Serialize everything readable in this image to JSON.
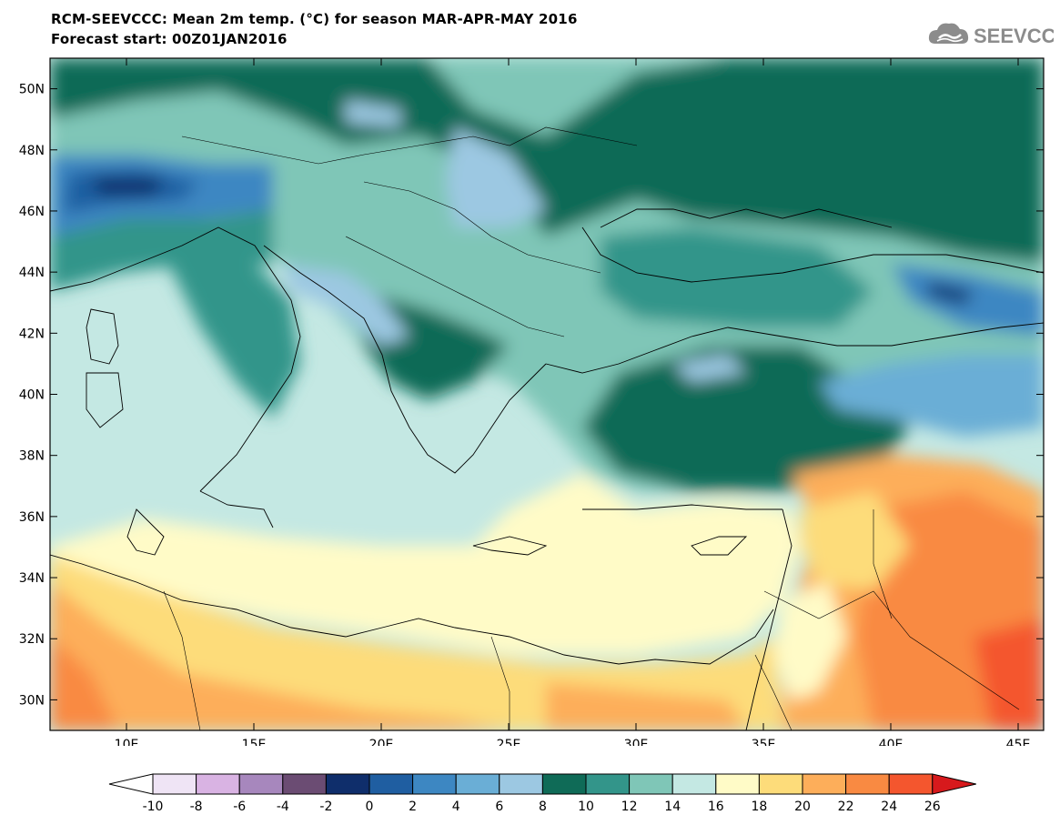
{
  "title": {
    "line1": "RCM-SEEVCCC: Mean 2m temp. (°C) for season MAR-APR-MAY 2016",
    "line2": "Forecast start: 00Z01JAN2016"
  },
  "logo": {
    "text": "SEEVCCC",
    "icon": "cloud-icon",
    "color": "#8c8c8c"
  },
  "map": {
    "lon_range": [
      7,
      46
    ],
    "lat_range": [
      29,
      51
    ],
    "x_ticks": [
      {
        "lon": 10,
        "label": "10E"
      },
      {
        "lon": 15,
        "label": "15E"
      },
      {
        "lon": 20,
        "label": "20E"
      },
      {
        "lon": 25,
        "label": "25E"
      },
      {
        "lon": 30,
        "label": "30E"
      },
      {
        "lon": 35,
        "label": "35E"
      },
      {
        "lon": 40,
        "label": "40E"
      },
      {
        "lon": 45,
        "label": "45E"
      }
    ],
    "y_ticks": [
      {
        "lat": 30,
        "label": "30N"
      },
      {
        "lat": 32,
        "label": "32N"
      },
      {
        "lat": 34,
        "label": "34N"
      },
      {
        "lat": 36,
        "label": "36N"
      },
      {
        "lat": 38,
        "label": "38N"
      },
      {
        "lat": 40,
        "label": "40N"
      },
      {
        "lat": 42,
        "label": "42N"
      },
      {
        "lat": 44,
        "label": "44N"
      },
      {
        "lat": 46,
        "label": "46N"
      },
      {
        "lat": 48,
        "label": "48N"
      },
      {
        "lat": 50,
        "label": "50N"
      }
    ]
  },
  "colorbar": {
    "labels": [
      "-10",
      "-8",
      "-6",
      "-4",
      "-2",
      "0",
      "2",
      "4",
      "6",
      "8",
      "10",
      "12",
      "14",
      "16",
      "18",
      "20",
      "22",
      "24",
      "26"
    ],
    "colors": [
      "#ffffff",
      "#efe4f5",
      "#d9b3e3",
      "#a787bd",
      "#6b4c73",
      "#0f2e6b",
      "#1f5ea1",
      "#3d87c2",
      "#6aaed6",
      "#9cc8e2",
      "#0f6b57",
      "#33958a",
      "#7fc6b7",
      "#c4e8e3",
      "#fffbc7",
      "#fddc7a",
      "#fdae5a",
      "#f98a42",
      "#f4562e",
      "#d7191c"
    ]
  }
}
